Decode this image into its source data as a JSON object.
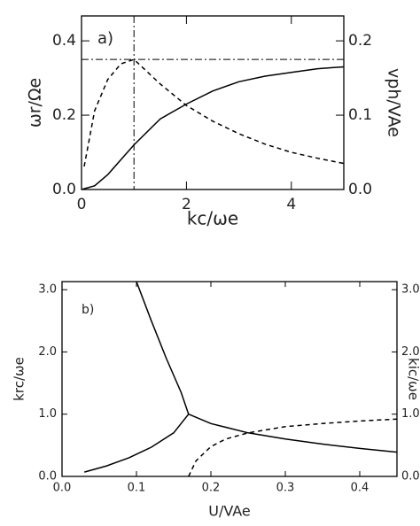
{
  "chart_data": [
    {
      "type": "line",
      "annotation": "a)",
      "xlabel": "kc/ωe",
      "ylabel": "ωr/Ωe",
      "y2label": "vph/VAe",
      "xlim": [
        0,
        5
      ],
      "xticks": [
        0,
        2,
        4
      ],
      "ylim": [
        0,
        0.467
      ],
      "yticks": [
        {
          "value": 0,
          "label": "0.0"
        },
        {
          "value": 0.2,
          "label": "0.2"
        },
        {
          "value": 0.4,
          "label": "0.4"
        }
      ],
      "y2lim": [
        0,
        0.2335
      ],
      "y2ticks": [
        {
          "value": 0,
          "label": "0.0"
        },
        {
          "value": 0.1,
          "label": "0.1"
        },
        {
          "value": 0.2,
          "label": "0.2"
        }
      ],
      "hlines": [
        0.35
      ],
      "vlines": [
        1
      ],
      "series": [
        {
          "color": "#000000",
          "dash": "solid",
          "x": [
            0,
            0.25,
            0.5,
            0.75,
            1,
            1.5,
            2,
            2.5,
            3,
            3.5,
            4,
            4.5,
            5
          ],
          "values": [
            0,
            0.01,
            0.04,
            0.08,
            0.12,
            0.19,
            0.23,
            0.265,
            0.29,
            0.305,
            0.315,
            0.325,
            0.33
          ]
        },
        {
          "color": "#000000",
          "dash": "dashed",
          "axis": "y2",
          "x": [
            0.05,
            0.25,
            0.5,
            0.75,
            1,
            1.5,
            2,
            2.5,
            3,
            3.5,
            4,
            4.5,
            5
          ],
          "values": [
            0.031,
            0.106,
            0.148,
            0.169,
            0.175,
            0.142,
            0.113,
            0.092,
            0.075,
            0.061,
            0.05,
            0.042,
            0.035
          ]
        }
      ]
    },
    {
      "type": "line",
      "annotation": "b)",
      "xlabel": "U/VAe",
      "ylabel": "krc/ωe",
      "y2label": "kic/ωe",
      "xlim": [
        0,
        0.45
      ],
      "xticks": [
        {
          "value": 0,
          "label": "0.0"
        },
        0.1,
        0.2,
        0.3,
        0.4
      ],
      "ylim": [
        0,
        3.13
      ],
      "yticks": [
        {
          "value": 0,
          "label": "0.0"
        },
        {
          "value": 1,
          "label": "1.0"
        },
        {
          "value": 2,
          "label": "2.0"
        },
        {
          "value": 3,
          "label": "3.0"
        }
      ],
      "y2lim": [
        0,
        3.13
      ],
      "y2ticks": [
        {
          "value": 0,
          "label": "0.0"
        },
        {
          "value": 1,
          "label": "1.0"
        },
        {
          "value": 2,
          "label": "2.0"
        },
        {
          "value": 3,
          "label": "3.0"
        }
      ],
      "series": [
        {
          "color": "#000000",
          "dash": "solid",
          "x": [
            0.03,
            0.06,
            0.09,
            0.12,
            0.15,
            0.17
          ],
          "values": [
            0.07,
            0.17,
            0.3,
            0.47,
            0.7,
            1.0
          ]
        },
        {
          "color": "#000000",
          "dash": "solid",
          "x": [
            0.1,
            0.12,
            0.14,
            0.16,
            0.17
          ],
          "values": [
            3.13,
            2.5,
            1.9,
            1.35,
            1.0
          ]
        },
        {
          "color": "#000000",
          "dash": "solid",
          "x": [
            0.17,
            0.2,
            0.25,
            0.3,
            0.35,
            0.4,
            0.45
          ],
          "values": [
            1.0,
            0.85,
            0.7,
            0.6,
            0.52,
            0.45,
            0.39
          ]
        },
        {
          "color": "#000000",
          "dash": "dashed",
          "axis": "y2",
          "x": [
            0.17,
            0.18,
            0.2,
            0.22,
            0.25,
            0.3,
            0.35,
            0.4,
            0.45
          ],
          "values": [
            0,
            0.25,
            0.48,
            0.6,
            0.7,
            0.8,
            0.85,
            0.89,
            0.92
          ]
        }
      ]
    }
  ]
}
